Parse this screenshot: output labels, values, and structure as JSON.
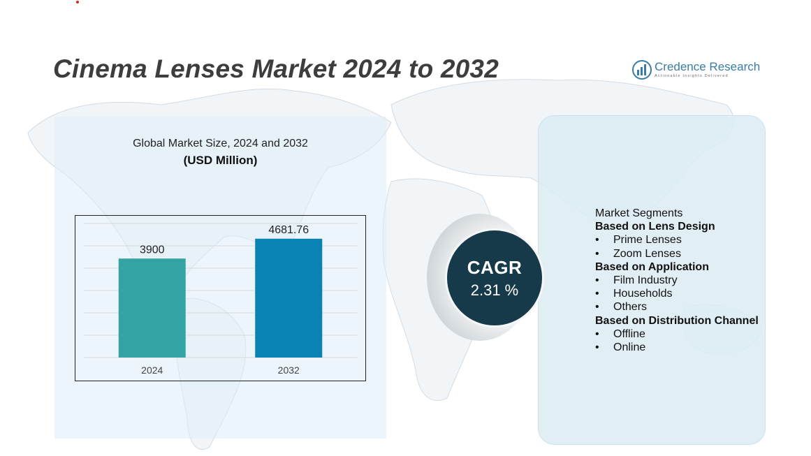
{
  "title": "Cinema Lenses Market 2024 to 2032",
  "brand": {
    "name": "Credence Research",
    "tagline": "Actionable Insights Delivered"
  },
  "market_size": {
    "title": "Global Market Size, 2024 and 2032",
    "unit": "(USD Million)"
  },
  "chart_data": {
    "type": "bar",
    "title": "Global Market Size, 2024 and 2032",
    "ylabel": "(USD Million)",
    "xlabel": "",
    "categories": [
      "2024",
      "2032"
    ],
    "values": [
      3900,
      4681.76
    ],
    "value_labels": [
      "3900",
      "4681.76"
    ],
    "colors": [
      "#33a3a3",
      "#0b82b4"
    ],
    "ylim": [
      0,
      5200
    ],
    "grid": true
  },
  "cagr": {
    "label": "CAGR",
    "value": "2.31 %"
  },
  "segments": {
    "heading": "Market Segments",
    "groups": [
      {
        "title": "Based on Lens Design",
        "items": [
          "Prime Lenses",
          "Zoom Lenses"
        ]
      },
      {
        "title": "Based on Application",
        "items": [
          "Film Industry",
          "Households",
          "Others"
        ]
      },
      {
        "title": "Based on Distribution Channel",
        "items": [
          "Offline",
          "Online"
        ]
      }
    ]
  },
  "colors": {
    "title": "#3d3d3d",
    "brand": "#3a7ca5",
    "cagr_bg": "#173a4b",
    "panel_left": "#ddecf7",
    "panel_right": "#dcecf3"
  }
}
